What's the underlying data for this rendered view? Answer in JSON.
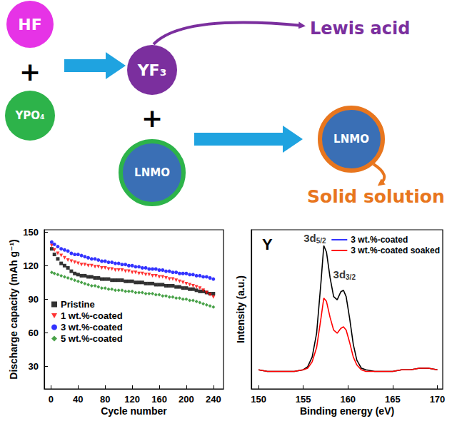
{
  "diagram": {
    "reagent_1": {
      "label": "HF",
      "color": "#e633e6"
    },
    "reagent_2": {
      "label": "YPO₄",
      "color": "#2db34a"
    },
    "product": {
      "label": "YF₃",
      "color": "#7b2f9e"
    },
    "core": {
      "label": "LNMO",
      "color": "#3a6fb5",
      "shell_color": "#2db34a"
    },
    "coated": {
      "label": "LNMO",
      "color": "#3a6fb5",
      "shell_color": "#e8761e"
    },
    "plus": "+",
    "arrow_color": "#1fa3e0",
    "callouts": [
      {
        "text": "Lewis acid",
        "color": "#7b2f9e"
      },
      {
        "text": "Solid solution",
        "color": "#e8761e"
      }
    ]
  },
  "chart_data": [
    {
      "type": "scatter",
      "x_label": "Cycle number",
      "y_label": "Discharge capacity (mAh g⁻¹)",
      "x": [
        1,
        5,
        10,
        15,
        20,
        25,
        30,
        35,
        40,
        45,
        50,
        55,
        60,
        65,
        70,
        75,
        80,
        85,
        90,
        95,
        100,
        105,
        110,
        115,
        120,
        125,
        130,
        135,
        140,
        145,
        150,
        155,
        160,
        165,
        170,
        175,
        180,
        185,
        190,
        195,
        200,
        205,
        210,
        215,
        220,
        225,
        230,
        235,
        240
      ],
      "series": [
        {
          "name": "Pristine",
          "color": "#000000",
          "marker": "square",
          "values": [
            135,
            130,
            126,
            122,
            120,
            118,
            115,
            113,
            112,
            111,
            111,
            110,
            110,
            109,
            109,
            108,
            108,
            108,
            107,
            107,
            107,
            107,
            106,
            106,
            106,
            105,
            105,
            105,
            104,
            104,
            104,
            103,
            103,
            103,
            102,
            102,
            102,
            101,
            101,
            100,
            100,
            99,
            99,
            98,
            97,
            97,
            96,
            95,
            95
          ]
        },
        {
          "name": "1 wt.%-coated",
          "color": "#ff0000",
          "marker": "triangle_down",
          "values": [
            138,
            134,
            131,
            129,
            127,
            125,
            124,
            123,
            122,
            121,
            121,
            120,
            120,
            119,
            119,
            118,
            118,
            117,
            117,
            116,
            116,
            116,
            115,
            115,
            114,
            114,
            113,
            113,
            112,
            112,
            111,
            111,
            110,
            110,
            109,
            108,
            108,
            107,
            106,
            105,
            104,
            103,
            102,
            101,
            100,
            98,
            96,
            94,
            92
          ]
        },
        {
          "name": "3 wt.%-coated",
          "color": "#0000ff",
          "marker": "circle",
          "values": [
            141,
            139,
            137,
            135,
            134,
            133,
            131,
            130,
            130,
            129,
            128,
            127,
            126,
            126,
            125,
            124,
            124,
            123,
            123,
            122,
            122,
            121,
            121,
            120,
            120,
            119,
            119,
            118,
            118,
            117,
            117,
            117,
            116,
            116,
            115,
            115,
            114,
            114,
            113,
            113,
            113,
            112,
            112,
            111,
            111,
            110,
            110,
            109,
            108
          ]
        },
        {
          "name": "5 wt.%-coated",
          "color": "#1a8a1a",
          "marker": "diamond",
          "values": [
            114,
            113,
            112,
            111,
            110,
            109,
            108,
            107,
            106,
            105,
            104,
            103,
            102,
            102,
            101,
            100,
            100,
            99,
            99,
            98,
            98,
            98,
            97,
            97,
            97,
            96,
            96,
            96,
            95,
            95,
            95,
            94,
            94,
            93,
            93,
            92,
            92,
            91,
            91,
            90,
            90,
            89,
            89,
            88,
            87,
            86,
            85,
            84,
            83
          ]
        }
      ],
      "xlim": [
        -10,
        255
      ],
      "xticks": [
        0,
        40,
        80,
        120,
        160,
        200,
        240
      ],
      "ylim": [
        10,
        152
      ],
      "yticks": [
        30,
        60,
        90,
        120,
        150
      ],
      "grid": false,
      "legend": "lower left"
    },
    {
      "type": "line",
      "panel_label": "Y",
      "x_label": "Binding energy (eV)",
      "y_label": "Intensity (a.u.)",
      "x": [
        150,
        151,
        152,
        153,
        154,
        155,
        155.5,
        156,
        156.5,
        157,
        157.3,
        157.6,
        158,
        158.4,
        158.8,
        159.2,
        159.5,
        159.8,
        160.2,
        160.6,
        161,
        161.5,
        162,
        163,
        164,
        165,
        166,
        167,
        168,
        169,
        170
      ],
      "series": [
        {
          "name": "3 wt.%-coated",
          "color": "#000000",
          "values": [
            12,
            11,
            11,
            11,
            11,
            12,
            14,
            20,
            35,
            68,
            90,
            86,
            70,
            58,
            56,
            61,
            62,
            58,
            44,
            28,
            18,
            13,
            12,
            11,
            11,
            11,
            12,
            12,
            13,
            13,
            12
          ]
        },
        {
          "name": "3 wt.%-coated soaked",
          "color": "#ff0000",
          "values": [
            12,
            11,
            11,
            11,
            11,
            12,
            13,
            17,
            26,
            45,
            57,
            55,
            45,
            37,
            35,
            38,
            39,
            37,
            29,
            20,
            15,
            12,
            11,
            11,
            11,
            11,
            12,
            12,
            13,
            13,
            12
          ]
        }
      ],
      "xlim": [
        149.2,
        170.6
      ],
      "xticks": [
        150,
        155,
        160,
        165,
        170
      ],
      "ylim": [
        0,
        100
      ],
      "tick_labels": "x",
      "grid": false,
      "legend": "upper right",
      "annotations": [
        {
          "text": "3d5/2",
          "x": 156.3,
          "y": 95
        },
        {
          "text": "3d3/2",
          "x": 159.6,
          "y": 72
        }
      ]
    }
  ]
}
